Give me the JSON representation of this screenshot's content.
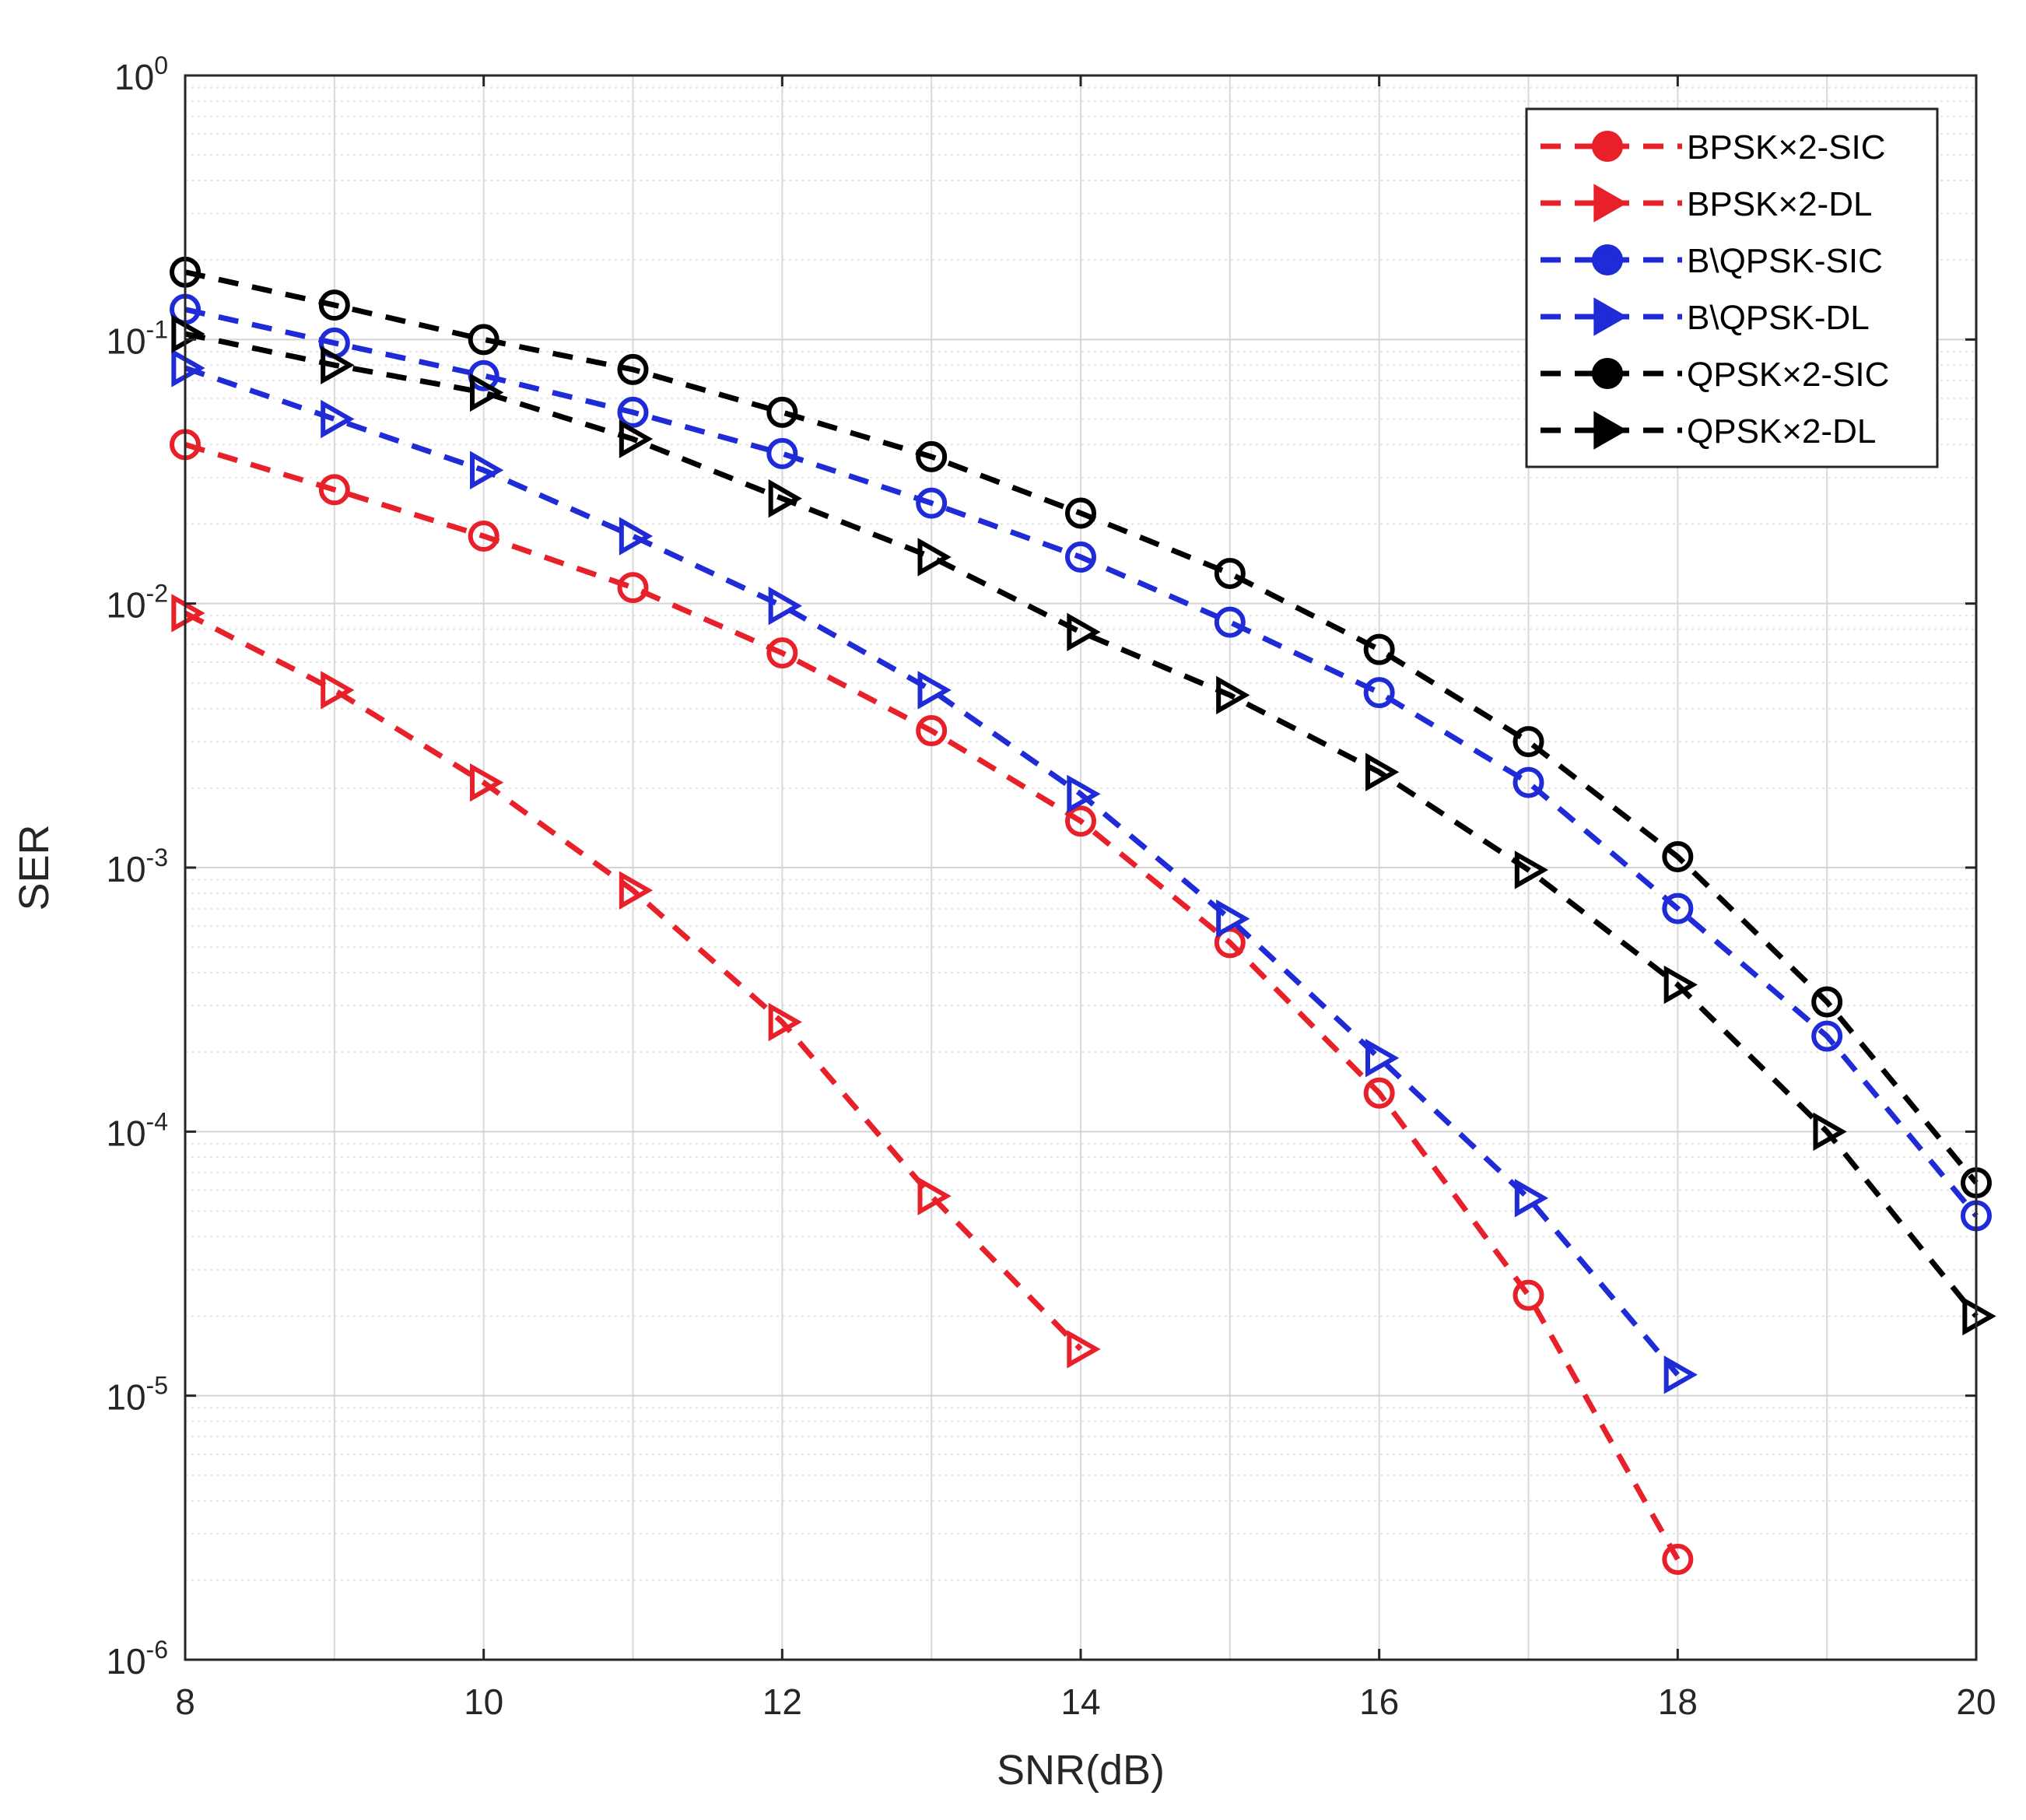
{
  "chart_data": {
    "type": "line",
    "xlabel": "SNR(dB)",
    "ylabel": "SER",
    "xlim": [
      8,
      20
    ],
    "ylim": [
      1e-06,
      1
    ],
    "yscale": "log",
    "grid": true,
    "minor_grid": true,
    "legend_position": "top-right",
    "x_ticks": [
      "8",
      "10",
      "12",
      "14",
      "16",
      "18",
      "20"
    ],
    "y_ticks": [
      {
        "base": "10",
        "exp": "0"
      },
      {
        "base": "10",
        "exp": "-1"
      },
      {
        "base": "10",
        "exp": "-2"
      },
      {
        "base": "10",
        "exp": "-3"
      },
      {
        "base": "10",
        "exp": "-4"
      },
      {
        "base": "10",
        "exp": "-5"
      },
      {
        "base": "10",
        "exp": "-6"
      }
    ],
    "series": [
      {
        "name": "BPSK×2-SIC",
        "color": "#e8202a",
        "marker": "circle",
        "x": [
          8,
          9,
          10,
          11,
          12,
          13,
          14,
          15,
          16,
          17,
          18
        ],
        "values": [
          0.04,
          0.027,
          0.018,
          0.0115,
          0.0065,
          0.0033,
          0.0015,
          0.00052,
          0.00014,
          2.4e-05,
          2.4e-06
        ]
      },
      {
        "name": "BPSK×2-DL",
        "color": "#e8202a",
        "marker": "triangle-right",
        "x": [
          8,
          9,
          10,
          11,
          12,
          13,
          14
        ],
        "values": [
          0.0092,
          0.0047,
          0.0021,
          0.00082,
          0.00026,
          5.7e-05,
          1.5e-05
        ]
      },
      {
        "name": "B\\QPSK-SIC",
        "color": "#1f2bd6",
        "marker": "circle",
        "x": [
          8,
          9,
          10,
          11,
          12,
          13,
          14,
          15,
          16,
          17,
          18,
          19,
          20
        ],
        "values": [
          0.13,
          0.097,
          0.073,
          0.053,
          0.037,
          0.024,
          0.015,
          0.0085,
          0.0046,
          0.0021,
          0.0007,
          0.00023,
          4.8e-05
        ]
      },
      {
        "name": "B\\QPSK-DL",
        "color": "#1f2bd6",
        "marker": "triangle-right",
        "x": [
          8,
          9,
          10,
          11,
          12,
          13,
          14,
          15,
          16,
          17,
          18
        ],
        "values": [
          0.078,
          0.05,
          0.032,
          0.018,
          0.0098,
          0.0047,
          0.0019,
          0.00064,
          0.00019,
          5.6e-05,
          1.2e-05
        ]
      },
      {
        "name": "QPSK×2-SIC",
        "color": "#000000",
        "marker": "circle",
        "x": [
          8,
          9,
          10,
          11,
          12,
          13,
          14,
          15,
          16,
          17,
          18,
          19,
          20
        ],
        "values": [
          0.18,
          0.135,
          0.1,
          0.077,
          0.053,
          0.036,
          0.022,
          0.013,
          0.0067,
          0.003,
          0.0011,
          0.00031,
          6.4e-05
        ]
      },
      {
        "name": "QPSK×2-DL",
        "color": "#000000",
        "marker": "triangle-right",
        "x": [
          8,
          9,
          10,
          11,
          12,
          13,
          14,
          15,
          16,
          17,
          18,
          19,
          20
        ],
        "values": [
          0.105,
          0.08,
          0.063,
          0.042,
          0.025,
          0.015,
          0.0078,
          0.0045,
          0.0023,
          0.00098,
          0.00036,
          0.0001,
          2e-05
        ]
      }
    ]
  }
}
